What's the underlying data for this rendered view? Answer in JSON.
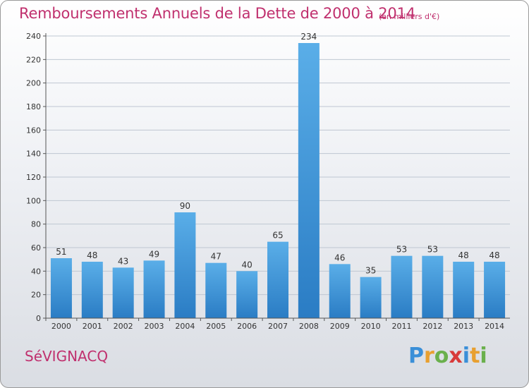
{
  "page": {
    "title": "Remboursements Annuels de la Dette de 2000 à 2014",
    "unit": "(en milliers d'€)",
    "commune": "SéVIGNACQ",
    "logo": {
      "letters": [
        {
          "char": "P",
          "color": "#3a8fd8"
        },
        {
          "char": "r",
          "color": "#e8a030"
        },
        {
          "char": "o",
          "color": "#6ab04c"
        },
        {
          "char": "x",
          "color": "#d83a3a"
        },
        {
          "char": "i",
          "color": "#3a8fd8"
        },
        {
          "char": "t",
          "color": "#e8a030"
        },
        {
          "char": "i",
          "color": "#6ab04c"
        }
      ]
    }
  },
  "chart_data": {
    "type": "bar",
    "categories": [
      "2000",
      "2001",
      "2002",
      "2003",
      "2004",
      "2005",
      "2006",
      "2007",
      "2008",
      "2009",
      "2010",
      "2011",
      "2012",
      "2013",
      "2014"
    ],
    "values": [
      51,
      48,
      43,
      49,
      90,
      47,
      40,
      65,
      234,
      46,
      35,
      53,
      53,
      48,
      48
    ],
    "data_labels": [
      "51",
      "48",
      "43",
      "49",
      "90",
      "47",
      "40",
      "65",
      "234",
      "46",
      "35",
      "53",
      "53",
      "48",
      "48"
    ],
    "yticks": [
      "0",
      "20",
      "40",
      "60",
      "80",
      "100",
      "120",
      "140",
      "160",
      "180",
      "200",
      "220",
      "240"
    ],
    "ylim": [
      0,
      240
    ],
    "grid": true,
    "colors": {
      "bar_top": "#5aaee8",
      "bar_bottom": "#2a7cc4",
      "grid": "#bfc7d2",
      "axis": "#555555"
    }
  }
}
